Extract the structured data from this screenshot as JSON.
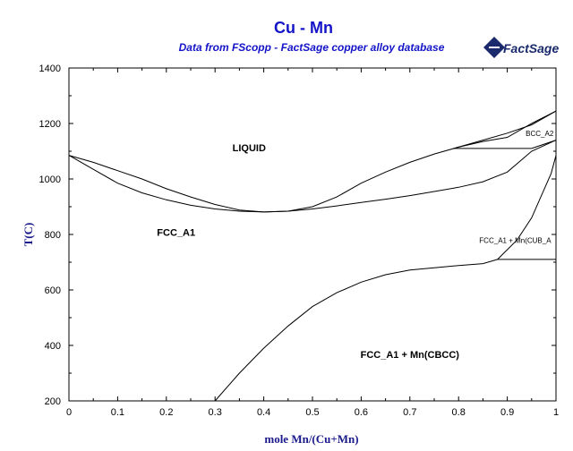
{
  "chart_data": {
    "type": "line",
    "title": "Cu - Mn",
    "subtitle": "Data from FScopp - FactSage copper alloy database",
    "xlabel": "mole Mn/(Cu+Mn)",
    "ylabel": "T(C)",
    "xlim": [
      0,
      1
    ],
    "ylim": [
      200,
      1400
    ],
    "x_ticks": [
      "0",
      "0.1",
      "0.2",
      "0.3",
      "0.4",
      "0.5",
      "0.6",
      "0.7",
      "0.8",
      "0.9",
      "1"
    ],
    "y_ticks": [
      "200",
      "400",
      "600",
      "800",
      "1000",
      "1200",
      "1400"
    ],
    "grid": false,
    "logo": "FactSage",
    "regions": [
      {
        "label": "LIQUID",
        "x": 0.37,
        "y": 1100
      },
      {
        "label": "FCC_A1",
        "x": 0.22,
        "y": 795
      },
      {
        "label": "FCC_A1 + Mn(CBCC)",
        "x": 0.7,
        "y": 355
      },
      {
        "label": "FCC_A1 + Mn(CUB_A",
        "x": 0.99,
        "y": 770,
        "small": true,
        "anchor": "end"
      },
      {
        "label": "BCC_A2",
        "x": 0.995,
        "y": 1155,
        "small": true,
        "anchor": "end"
      }
    ],
    "series": [
      {
        "values": [
          [
            0,
            1085
          ],
          [
            0.05,
            1035
          ],
          [
            0.1,
            985
          ],
          [
            0.15,
            950
          ],
          [
            0.2,
            925
          ],
          [
            0.25,
            905
          ],
          [
            0.3,
            892
          ],
          [
            0.35,
            884
          ],
          [
            0.4,
            881
          ],
          [
            0.45,
            884
          ],
          [
            0.5,
            892
          ],
          [
            0.55,
            903
          ],
          [
            0.6,
            915
          ],
          [
            0.65,
            927
          ],
          [
            0.7,
            940
          ],
          [
            0.75,
            955
          ],
          [
            0.8,
            970
          ],
          [
            0.85,
            990
          ],
          [
            0.9,
            1025
          ],
          [
            0.95,
            1100
          ],
          [
            1,
            1140
          ]
        ]
      },
      {
        "values": [
          [
            0,
            1085
          ],
          [
            0.05,
            1060
          ],
          [
            0.1,
            1030
          ],
          [
            0.15,
            1000
          ],
          [
            0.2,
            965
          ],
          [
            0.25,
            935
          ],
          [
            0.3,
            908
          ],
          [
            0.35,
            888
          ],
          [
            0.4,
            881
          ],
          [
            0.45,
            884
          ],
          [
            0.5,
            900
          ],
          [
            0.55,
            935
          ],
          [
            0.6,
            985
          ],
          [
            0.65,
            1025
          ],
          [
            0.7,
            1060
          ],
          [
            0.75,
            1090
          ],
          [
            0.8,
            1115
          ],
          [
            0.85,
            1135
          ],
          [
            0.9,
            1150
          ],
          [
            0.95,
            1200
          ],
          [
            1,
            1245
          ]
        ]
      },
      {
        "values": [
          [
            0.79,
            1110
          ],
          [
            0.95,
            1110
          ]
        ]
      },
      {
        "values": [
          [
            0.79,
            1110
          ],
          [
            0.85,
            1140
          ],
          [
            0.9,
            1165
          ],
          [
            0.95,
            1195
          ],
          [
            1,
            1245
          ]
        ]
      },
      {
        "values": [
          [
            0.95,
            1110
          ],
          [
            1,
            1140
          ]
        ]
      },
      {
        "values": [
          [
            0.3,
            200
          ],
          [
            0.35,
            300
          ],
          [
            0.4,
            390
          ],
          [
            0.45,
            470
          ],
          [
            0.5,
            540
          ],
          [
            0.55,
            590
          ],
          [
            0.6,
            628
          ],
          [
            0.65,
            655
          ],
          [
            0.7,
            672
          ],
          [
            0.75,
            680
          ],
          [
            0.8,
            688
          ],
          [
            0.85,
            695
          ],
          [
            0.88,
            710
          ]
        ]
      },
      {
        "values": [
          [
            0.88,
            710
          ],
          [
            1,
            710
          ]
        ]
      },
      {
        "values": [
          [
            0.88,
            710
          ],
          [
            0.92,
            780
          ],
          [
            0.95,
            860
          ],
          [
            0.97,
            940
          ],
          [
            0.99,
            1020
          ],
          [
            1,
            1085
          ]
        ]
      }
    ]
  }
}
